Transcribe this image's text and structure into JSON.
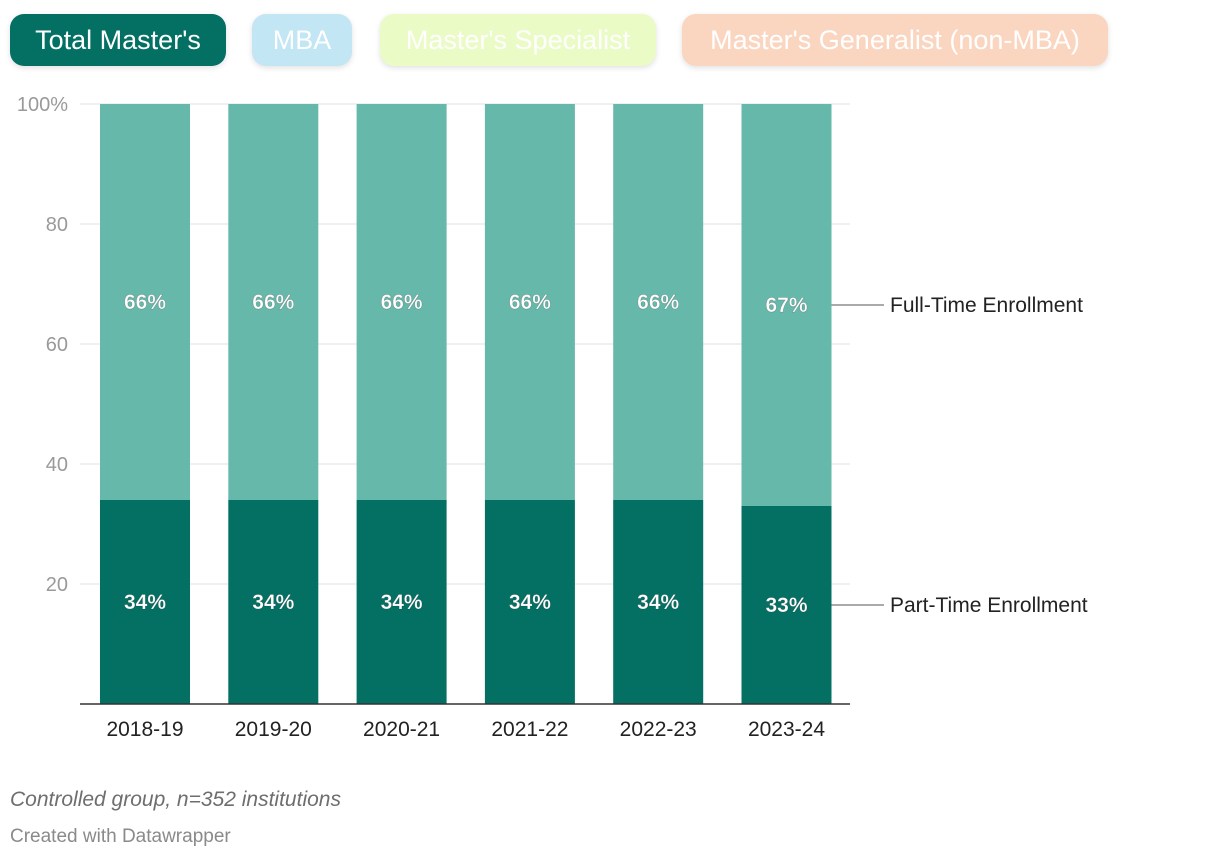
{
  "tabs": [
    {
      "label": "Total Master's",
      "active": true
    },
    {
      "label": "MBA",
      "active": false
    },
    {
      "label": "Master's Specialist",
      "active": false
    },
    {
      "label": "Master's Generalist (non-MBA)",
      "active": false
    }
  ],
  "colors": {
    "tab_active": "#037063",
    "tab_mba": "#c2e6f3",
    "tab_specialist": "#eafbc6",
    "tab_generalist": "#fad5c0",
    "full_time": "#66b8aa",
    "part_time": "#037063"
  },
  "chart_data": {
    "type": "bar",
    "stacked": true,
    "categories": [
      "2018-19",
      "2019-20",
      "2020-21",
      "2021-22",
      "2022-23",
      "2023-24"
    ],
    "series": [
      {
        "name": "Part-Time Enrollment",
        "values": [
          34,
          34,
          34,
          34,
          34,
          33
        ],
        "labels": [
          "34%",
          "34%",
          "34%",
          "34%",
          "34%",
          "33%"
        ]
      },
      {
        "name": "Full-Time Enrollment",
        "values": [
          66,
          66,
          66,
          66,
          66,
          67
        ],
        "labels": [
          "66%",
          "66%",
          "66%",
          "66%",
          "66%",
          "67%"
        ]
      }
    ],
    "ylim": [
      0,
      100
    ],
    "yticks": [
      20,
      40,
      60,
      80,
      100
    ],
    "ytick_labels": [
      "20",
      "40",
      "60",
      "80",
      "100%"
    ],
    "grid": true,
    "legend": "inline-right"
  },
  "footer": {
    "note": "Controlled group, n=352 institutions",
    "credit": "Created with Datawrapper"
  }
}
